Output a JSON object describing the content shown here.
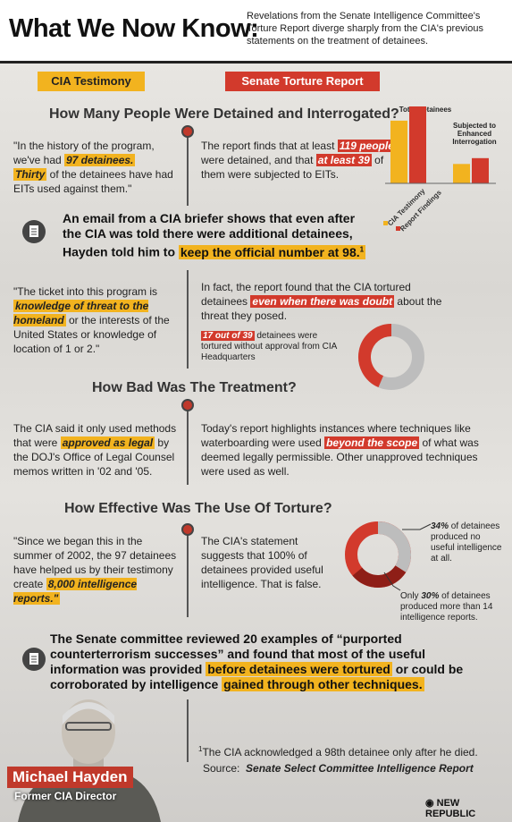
{
  "header": {
    "title": "What We Now Know:",
    "subtitle": "Revelations from the Senate Intelligence Committee's Torture Report diverge sharply from the CIA's previous statements on the treatment of detainees."
  },
  "columns": {
    "left": "CIA Testimony",
    "right": "Senate Torture Report"
  },
  "rows": [
    {
      "heading": "How Many People Were Detained and Interrogated?",
      "cia": [
        "\"In the history of the program, we've had ",
        "97 detainees.",
        "Thirty",
        " of the detainees have had EITs used against them.\""
      ],
      "senate": [
        "The report finds that at least ",
        "119 people",
        " were detained, and that ",
        "at least 39",
        " of them were subjected to EITs."
      ]
    },
    {
      "cia": [
        "\"The ticket into this program is ",
        "knowledge of threat to the homeland",
        " or the interests of the United States or knowledge of location of 1 or 2.\""
      ],
      "senate": [
        "In fact, the report found that the CIA tortured detainees ",
        "even when there was doubt",
        " about the threat they posed."
      ]
    },
    {
      "heading": "How Bad Was The Treatment?",
      "cia": [
        "The CIA said it only used methods that were ",
        "approved as legal",
        " by the DOJ's Office of Legal Counsel memos written in '02 and '05."
      ],
      "senate": [
        "Today's report highlights instances where techniques like waterboarding were used ",
        "beyond the scope",
        " of what was deemed legally permissible. Other unapproved techniques were used as well."
      ]
    },
    {
      "heading": "How Effective Was The Use Of Torture?",
      "cia": [
        "\"Since we began this in the summer of 2002, the 97 detainees have helped us by their testimony create ",
        "8,000 intelligence reports.\""
      ],
      "senate": [
        "The CIA's statement suggests that 100% of detainees provided useful intelligence. That is false."
      ]
    }
  ],
  "callouts": [
    [
      "An email from a CIA briefer shows that even after the CIA was told there were additional detainees, Hayden told him to ",
      "keep the official number at 98.",
      "1"
    ],
    [
      "The Senate committee reviewed 20 examples of “purported counterterrorism successes” and found that most of the useful information was provided ",
      "before detainees were tortured",
      " or could be corroborated by intelligence ",
      "gained through other techniques."
    ]
  ],
  "person": {
    "name": "Michael Hayden",
    "role": "Former CIA Director"
  },
  "footnote": {
    "mark": "1",
    "text": "The CIA acknowledged a 98th detainee only after he died."
  },
  "source": {
    "label": "Source:",
    "text": "Senate Select Committee Intelligence Report"
  },
  "brand": "NEW REPUBLIC",
  "chart_data": [
    {
      "type": "bar",
      "categories": [
        "Total Detainees",
        "Subjected to Enhanced Interrogation"
      ],
      "series": [
        {
          "name": "CIA Testimony",
          "color": "#f2b31f",
          "values": [
            97,
            30
          ]
        },
        {
          "name": "Report Findings",
          "color": "#d23a2c",
          "values": [
            119,
            39
          ]
        }
      ]
    },
    {
      "type": "donut",
      "value": 17,
      "total": 39,
      "label": "17 out of 39",
      "text": " detainees were tortured without approval from CIA Headquarters",
      "colors": [
        "#d23a2c",
        "#bdbdbd"
      ]
    },
    {
      "type": "percent-donut",
      "values": [
        34,
        30
      ],
      "value_labels": [
        "34%",
        "30%"
      ],
      "colors": [
        "#bdbdbd",
        "#8e1e17"
      ],
      "ring_color": "#d23a2c",
      "notes": [
        {
          "text": " of detainees produced no useful intelligence at all."
        },
        {
          "before": "Only ",
          "text": " of detainees produced more than 14 intelligence reports."
        }
      ]
    }
  ]
}
